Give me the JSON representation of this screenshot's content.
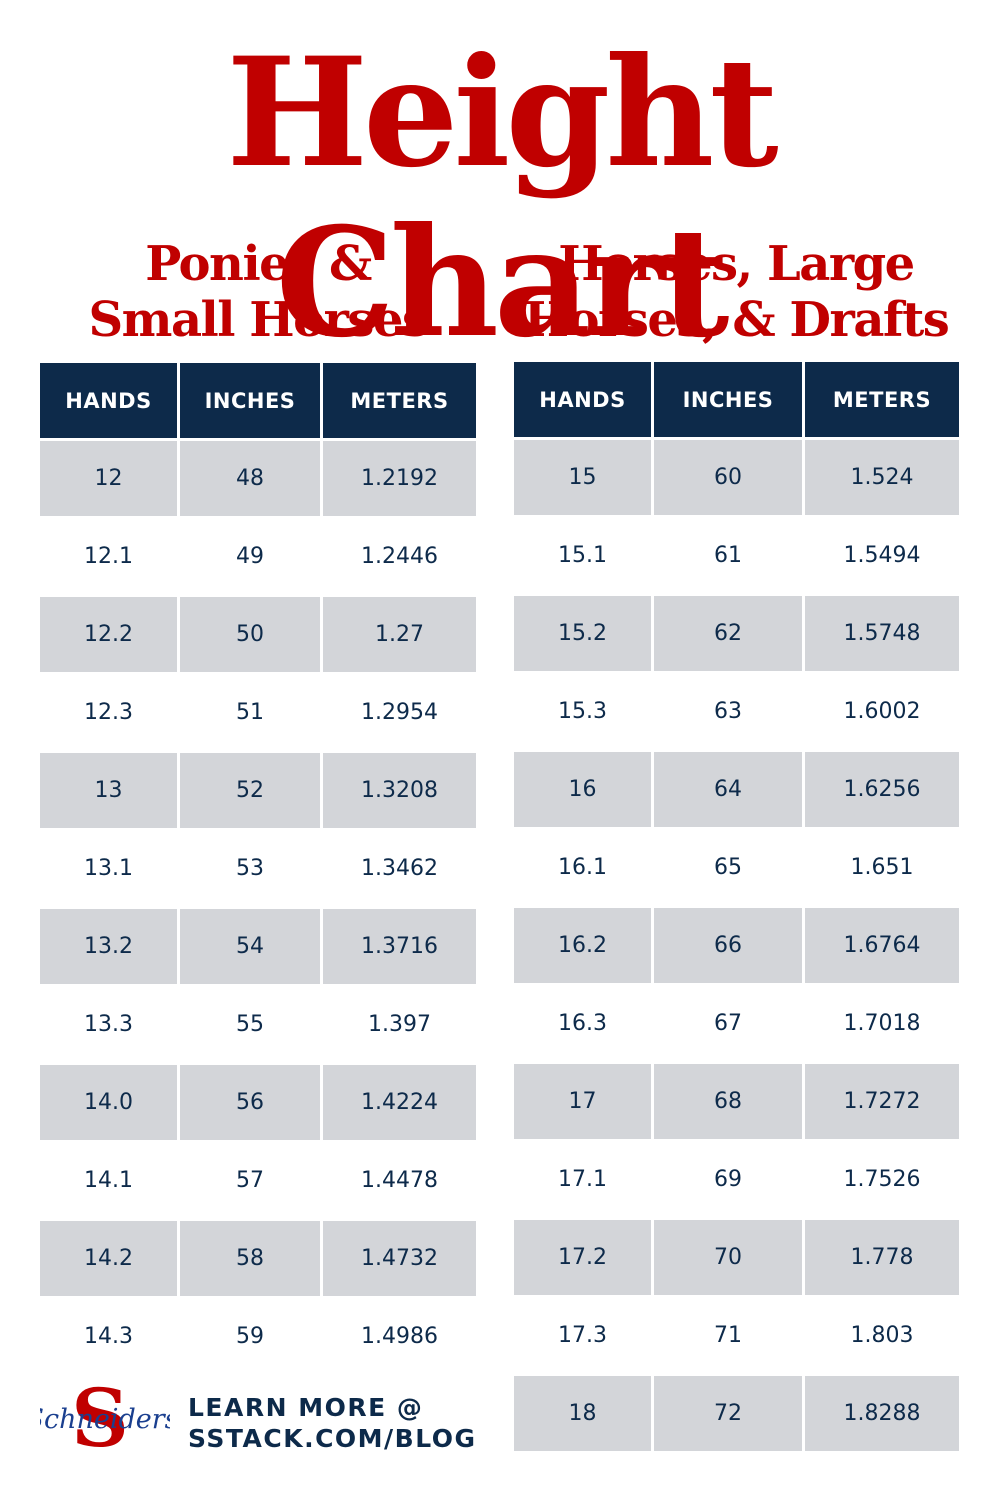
{
  "title": "Height Chart",
  "sections": [
    {
      "subtitle_lines": [
        "Ponies &",
        "Small Horses"
      ],
      "headers": [
        "HANDS",
        "INCHES",
        "METERS"
      ],
      "rows": [
        [
          "12",
          "48",
          "1.2192"
        ],
        [
          "12.1",
          "49",
          "1.2446"
        ],
        [
          "12.2",
          "50",
          "1.27"
        ],
        [
          "12.3",
          "51",
          "1.2954"
        ],
        [
          "13",
          "52",
          "1.3208"
        ],
        [
          "13.1",
          "53",
          "1.3462"
        ],
        [
          "13.2",
          "54",
          "1.3716"
        ],
        [
          "13.3",
          "55",
          "1.397"
        ],
        [
          "14.0",
          "56",
          "1.4224"
        ],
        [
          "14.1",
          "57",
          "1.4478"
        ],
        [
          "14.2",
          "58",
          "1.4732"
        ],
        [
          "14.3",
          "59",
          "1.4986"
        ]
      ]
    },
    {
      "subtitle_lines": [
        "Horses, Large",
        "Horses, & Drafts"
      ],
      "headers": [
        "HANDS",
        "INCHES",
        "METERS"
      ],
      "rows": [
        [
          "15",
          "60",
          "1.524"
        ],
        [
          "15.1",
          "61",
          "1.5494"
        ],
        [
          "15.2",
          "62",
          "1.5748"
        ],
        [
          "15.3",
          "63",
          "1.6002"
        ],
        [
          "16",
          "64",
          "1.6256"
        ],
        [
          "16.1",
          "65",
          "1.651"
        ],
        [
          "16.2",
          "66",
          "1.6764"
        ],
        [
          "16.3",
          "67",
          "1.7018"
        ],
        [
          "17",
          "68",
          "1.7272"
        ],
        [
          "17.1",
          "69",
          "1.7526"
        ],
        [
          "17.2",
          "70",
          "1.778"
        ],
        [
          "17.3",
          "71",
          "1.803"
        ],
        [
          "18",
          "72",
          "1.8288"
        ]
      ]
    }
  ],
  "footer": {
    "logo_text": "Schneiders",
    "learn_more_lines": [
      "LEARN MORE @",
      "SSTACK.COM/BLOG"
    ]
  },
  "colors": {
    "title_red": "#c00000",
    "header_navy": "#0d2a4a",
    "row_gray": "#d3d5d9",
    "logo_blue": "#1a3f8f"
  },
  "icons": {
    "logo": "schneiders-s-logo"
  }
}
